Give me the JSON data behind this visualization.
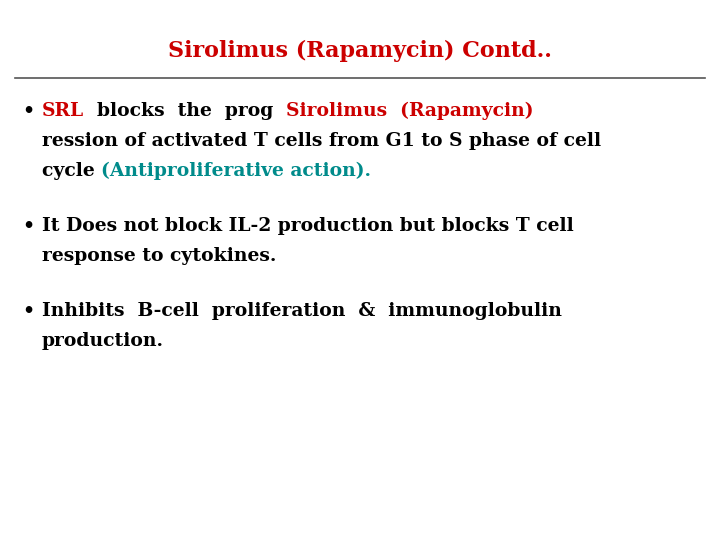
{
  "title": "Sirolimus (Rapamycin) Contd..",
  "title_color": "#cc0000",
  "title_fontsize": 16,
  "background_color": "#ffffff",
  "line_color": "#555555",
  "body_fontsize": 13.5,
  "bullet1_seg1": "SRL",
  "bullet1_seg1_color": "#cc0000",
  "bullet1_seg2": "  blocks  the  prog  ",
  "bullet1_seg2_color": "#000000",
  "bullet1_seg3": "Sirolimus  (Rapamycin)",
  "bullet1_seg3_color": "#cc0000",
  "bullet1_line2": "ression of activated T cells from G1 to S phase of cell",
  "bullet1_line3a": "cycle ",
  "bullet1_line3a_color": "#000000",
  "bullet1_line3b": "(Antiproliferative action).",
  "bullet1_line3b_color": "#008b8b",
  "bullet2_line1": "It Does not block IL-2 production but blocks T cell",
  "bullet2_line2": "response to cytokines.",
  "bullet3_line1": "Inhibits  B-cell  proliferation  &  immunoglobulin",
  "bullet3_line2": "production.",
  "text_color": "#000000"
}
